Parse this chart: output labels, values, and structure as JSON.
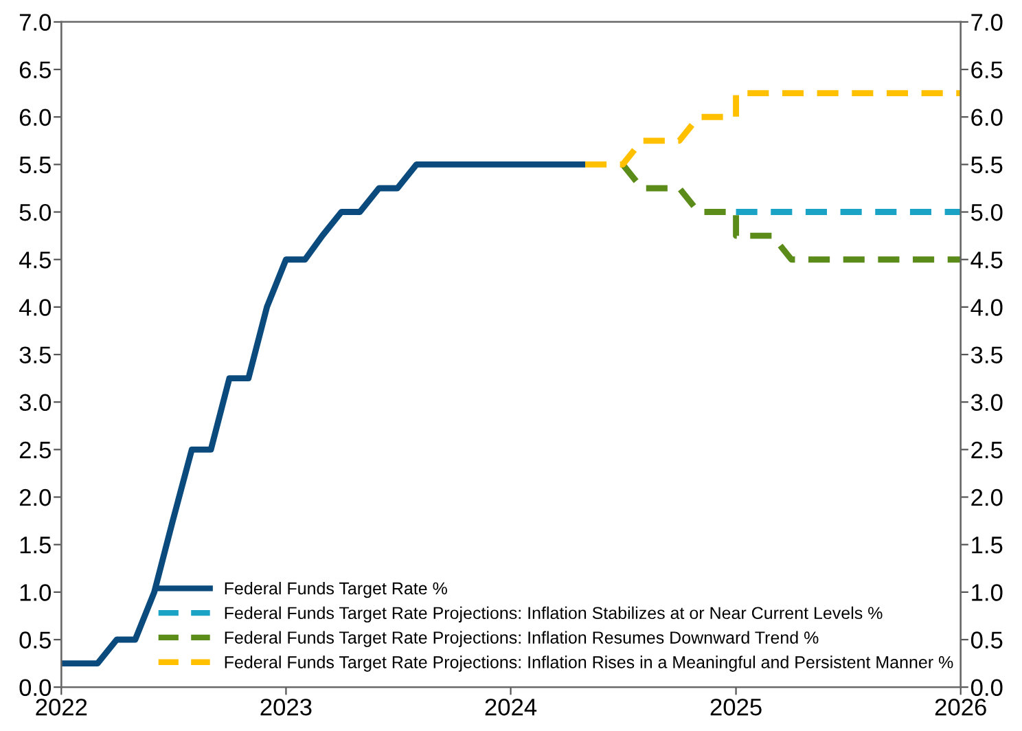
{
  "chart_data": {
    "type": "line",
    "xlim": [
      "2022-01-01",
      "2026-01-01"
    ],
    "xticks": [
      {
        "value": "2022-01-01",
        "label": "2022"
      },
      {
        "value": "2023-01-01",
        "label": "2023"
      },
      {
        "value": "2024-01-01",
        "label": "2024"
      },
      {
        "value": "2025-01-01",
        "label": "2025"
      },
      {
        "value": "2026-01-01",
        "label": "2026"
      }
    ],
    "ylim": [
      0,
      7
    ],
    "yticks": [
      {
        "value": 0,
        "label": "0.0"
      },
      0.5,
      {
        "value": 1,
        "label": "1.0"
      },
      1.5,
      {
        "value": 2,
        "label": "2.0"
      },
      2.5,
      {
        "value": 3,
        "label": "3.0"
      },
      3.5,
      {
        "value": 4,
        "label": "4.0"
      },
      4.5,
      {
        "value": 5,
        "label": "5.0"
      },
      5.5,
      {
        "value": 6,
        "label": "6.0"
      },
      6.5,
      {
        "value": 7,
        "label": "7.0"
      }
    ],
    "y2lim": [
      0,
      7
    ],
    "y2ticks": [
      {
        "value": 0,
        "label": "0.0"
      },
      0.5,
      {
        "value": 1,
        "label": "1.0"
      },
      1.5,
      {
        "value": 2,
        "label": "2.0"
      },
      2.5,
      {
        "value": 3,
        "label": "3.0"
      },
      3.5,
      {
        "value": 4,
        "label": "4.0"
      },
      4.5,
      {
        "value": 5,
        "label": "5.0"
      },
      5.5,
      {
        "value": 6,
        "label": "6.0"
      },
      6.5,
      {
        "value": 7,
        "label": "7.0"
      }
    ],
    "grid": false,
    "legend": "bottom",
    "series": [
      {
        "name": "Federal Funds Target Rate %",
        "color": "#0b4a7d",
        "line_style": "solid",
        "x": [
          "2022-01",
          "2022-02",
          "2022-03",
          "2022-04",
          "2022-05",
          "2022-06",
          "2022-07",
          "2022-08",
          "2022-09",
          "2022-10",
          "2022-11",
          "2022-12",
          "2023-01",
          "2023-02",
          "2023-03",
          "2023-04",
          "2023-05",
          "2023-06",
          "2023-07",
          "2023-08",
          "2023-09",
          "2023-10",
          "2023-11",
          "2023-12",
          "2024-01",
          "2024-02",
          "2024-03",
          "2024-04",
          "2024-05"
        ],
        "values": [
          0.25,
          0.25,
          0.25,
          0.5,
          0.5,
          1.0,
          1.75,
          2.5,
          2.5,
          3.25,
          3.25,
          4.0,
          4.5,
          4.5,
          4.75,
          5.0,
          5.0,
          5.25,
          5.25,
          5.5,
          5.5,
          5.5,
          5.5,
          5.5,
          5.5,
          5.5,
          5.5,
          5.5,
          5.5
        ]
      },
      {
        "name": "Federal Funds Target Rate Projections: Inflation Stabilizes at or Near Current Levels %",
        "color": "#1ba3c6",
        "line_style": "dashed",
        "x": [
          "2025-01",
          "2026-01"
        ],
        "values": [
          5.0,
          5.0
        ]
      },
      {
        "name": "Federal Funds Target Rate Projections: Inflation Resumes Downward Trend %",
        "color": "#5b8c1a",
        "line_style": "dashed",
        "x": [
          "2024-07",
          "2024-08",
          "2024-10",
          "2024-11",
          "2025-01",
          "2025-01",
          "2025-03",
          "2025-04",
          "2026-01"
        ],
        "values": [
          5.5,
          5.25,
          5.25,
          5.0,
          5.0,
          4.75,
          4.75,
          4.5,
          4.5
        ]
      },
      {
        "name": "Federal Funds Target Rate Projections: Inflation Rises in a Meaningful and Persistent Manner %",
        "color": "#ffc000",
        "line_style": "dashed",
        "x": [
          "2024-05",
          "2024-07",
          "2024-08",
          "2024-10",
          "2024-11",
          "2025-01",
          "2025-01",
          "2026-01"
        ],
        "values": [
          5.5,
          5.5,
          5.75,
          5.75,
          6.0,
          6.0,
          6.25,
          6.25
        ]
      }
    ]
  }
}
